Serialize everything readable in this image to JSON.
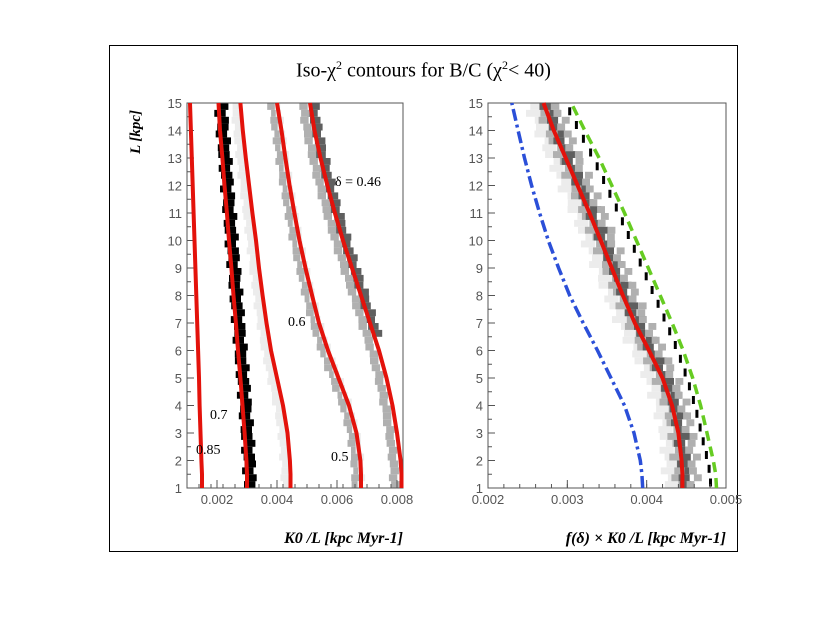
{
  "title": {
    "prefix": "Iso-χ",
    "sup": "2",
    "rest": " contours for B/C   (χ",
    "sup2": "2",
    "end": "< 40)"
  },
  "chart_data": [
    {
      "type": "line",
      "panel": "left",
      "ylabel": "L [kpc]",
      "xlabel": "K0 /L [kpc Myr-1]",
      "xlim": [
        0.001,
        0.0082
      ],
      "ylim": [
        1,
        15
      ],
      "xticks": [
        "0.002",
        "0.004",
        "0.006",
        "0.008"
      ],
      "yticks": [
        "1",
        "2",
        "3",
        "4",
        "5",
        "6",
        "7",
        "8",
        "9",
        "10",
        "11",
        "12",
        "13",
        "14",
        "15"
      ],
      "annotations": [
        "δ = 0.46",
        "0.6",
        "0.7",
        "0.85",
        "0.5"
      ],
      "series": [
        {
          "name": "0.85",
          "L": [
            1,
            1.5,
            2,
            3,
            4,
            5,
            6,
            7,
            8,
            9,
            10,
            11,
            12,
            13,
            14,
            15
          ],
          "x": [
            0.0015,
            0.0015,
            0.00148,
            0.00145,
            0.00142,
            0.0014,
            0.00137,
            0.00134,
            0.00131,
            0.00128,
            0.00125,
            0.00122,
            0.00119,
            0.00116,
            0.00113,
            0.0011
          ]
        },
        {
          "name": "0.7",
          "L": [
            1,
            1.5,
            2,
            3,
            4,
            5,
            6,
            7,
            8,
            9,
            10,
            11,
            12,
            13,
            14,
            15
          ],
          "x": [
            0.003,
            0.003,
            0.00298,
            0.00292,
            0.00285,
            0.00278,
            0.0027,
            0.00263,
            0.00255,
            0.00248,
            0.0024,
            0.00233,
            0.00225,
            0.00218,
            0.0021,
            0.00205
          ]
        },
        {
          "name": "0.6",
          "L": [
            1,
            1.5,
            2,
            3,
            4,
            5,
            6,
            7,
            8,
            9,
            10,
            11,
            12,
            13,
            14,
            15
          ],
          "x": [
            0.00445,
            0.00445,
            0.00443,
            0.00435,
            0.0042,
            0.004,
            0.0038,
            0.00365,
            0.00352,
            0.0034,
            0.0033,
            0.00318,
            0.00307,
            0.00296,
            0.00286,
            0.00278
          ]
        },
        {
          "name": "0.5",
          "L": [
            1,
            1.5,
            2,
            3,
            4,
            5,
            6,
            7,
            8,
            9,
            10,
            11,
            12,
            13,
            14,
            15
          ],
          "x": [
            0.0068,
            0.0068,
            0.00678,
            0.00665,
            0.0064,
            0.00605,
            0.0057,
            0.0054,
            0.00517,
            0.00495,
            0.00475,
            0.00458,
            0.00442,
            0.00428,
            0.00415,
            0.004
          ]
        },
        {
          "name": "0.46",
          "L": [
            1,
            1.5,
            2,
            3,
            4,
            5,
            6,
            7,
            8,
            9,
            10,
            11,
            12,
            13,
            14,
            15
          ],
          "x": [
            0.00815,
            0.00815,
            0.00812,
            0.008,
            0.00785,
            0.00765,
            0.0074,
            0.0071,
            0.0068,
            0.0065,
            0.0062,
            0.00593,
            0.00568,
            0.00545,
            0.00525,
            0.0051
          ]
        }
      ]
    },
    {
      "type": "line",
      "panel": "right",
      "xlabel": "f(δ) × K0 /L [kpc Myr-1]",
      "xlim": [
        0.002,
        0.005
      ],
      "ylim": [
        1,
        15
      ],
      "xticks": [
        "0.002",
        "0.003",
        "0.004",
        "0.005"
      ],
      "yticks": [
        "1",
        "2",
        "3",
        "4",
        "5",
        "6",
        "7",
        "8",
        "9",
        "10",
        "11",
        "12",
        "13",
        "14",
        "15"
      ],
      "series": [
        {
          "name": "red solid",
          "L": [
            1,
            1.5,
            2,
            3,
            4,
            5,
            6,
            7,
            8,
            9,
            10,
            11,
            12,
            13,
            14,
            15
          ],
          "x": [
            0.00445,
            0.00445,
            0.00444,
            0.0044,
            0.00432,
            0.0042,
            0.00403,
            0.00385,
            0.0037,
            0.00356,
            0.00342,
            0.00328,
            0.00313,
            0.00298,
            0.00283,
            0.0027
          ]
        },
        {
          "name": "green dashed",
          "L": [
            1,
            1.5,
            2,
            3,
            4,
            5,
            6,
            7,
            8,
            9,
            10,
            11,
            12,
            13,
            14,
            15
          ],
          "x": [
            0.00488,
            0.00487,
            0.00484,
            0.00476,
            0.00468,
            0.00458,
            0.00446,
            0.00432,
            0.00417,
            0.00402,
            0.00387,
            0.00372,
            0.00356,
            0.0034,
            0.00322,
            0.00305
          ]
        },
        {
          "name": "blue dash-dot",
          "L": [
            1,
            1.5,
            2,
            3,
            4,
            5,
            6,
            7,
            8,
            9,
            10,
            11,
            12,
            13,
            14,
            15
          ],
          "x": [
            0.00395,
            0.00394,
            0.00392,
            0.00384,
            0.00372,
            0.00355,
            0.00338,
            0.0032,
            0.00303,
            0.00289,
            0.00276,
            0.00265,
            0.00255,
            0.00246,
            0.00238,
            0.0023
          ]
        }
      ]
    }
  ],
  "colors": {
    "red": "#e3120b",
    "green": "#66cc22",
    "blue": "#2b4fd8",
    "black": "#000000",
    "dark": "#5f5f5f",
    "mid": "#b0b0b0",
    "light": "#ececec"
  }
}
